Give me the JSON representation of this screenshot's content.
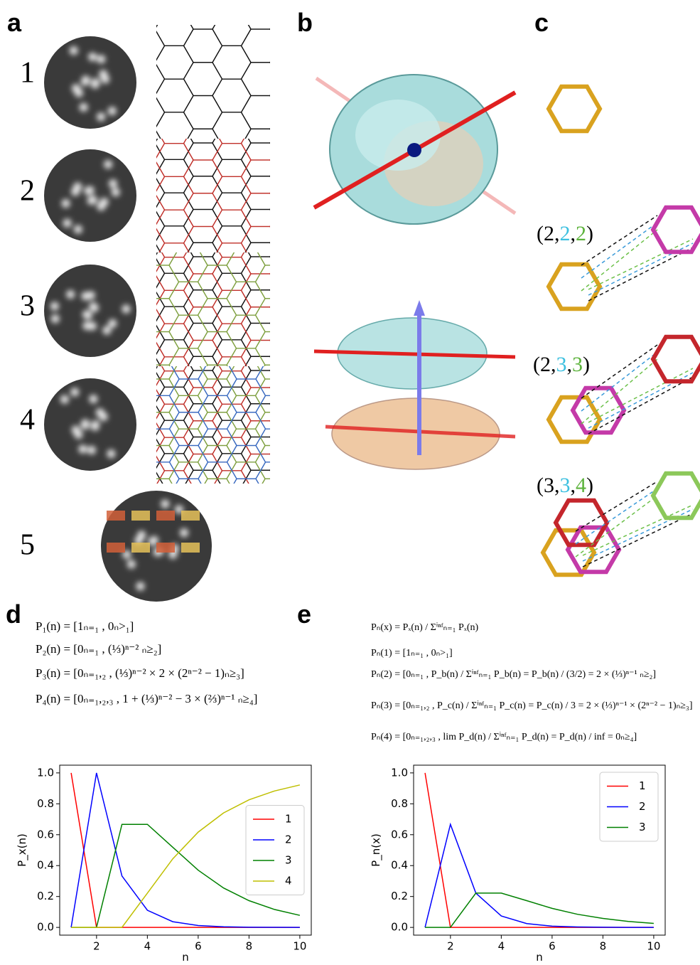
{
  "panels": {
    "a": "a",
    "b": "b",
    "c": "c",
    "d": "d",
    "e": "e"
  },
  "rows": [
    "1",
    "2",
    "3",
    "4",
    "5"
  ],
  "triples": [
    [
      "(2,",
      "2",
      ",",
      "2",
      ")"
    ],
    [
      "(2,",
      "3",
      ",",
      "3",
      ")"
    ],
    [
      "(3,",
      "3",
      ",",
      "4",
      ")"
    ]
  ],
  "equations_d": [
    "P₁(n) = [1ₙ₌₁ , 0ₙ>₁]",
    "P₂(n) = [0ₙ₌₁ , (⅓)ⁿ⁻² ₙ≥₂]",
    "P₃(n) = [0ₙ₌₁,₂ , (⅓)ⁿ⁻² × 2 × (2ⁿ⁻² − 1)ₙ≥₃]",
    "P₄(n) = [0ₙ₌₁,₂,₃ , 1 + (⅓)ⁿ⁻² − 3 × (⅔)ⁿ⁻¹ ₙ≥₄]"
  ],
  "equations_e": [
    "Pₙ(x) = Pₓ(n) / Σⁱⁿᶠₙ₌₁ Pₓ(n)",
    "Pₙ(1) = [1ₙ₌₁ , 0ₙ>₁]",
    "Pₙ(2) = [0ₙ₌₁ , P_b(n) / Σⁱⁿᶠₙ₌₁ P_b(n) = P_b(n) / (3/2) = 2 × (⅓)ⁿ⁻¹ ₙ≥₂]",
    "Pₙ(3) = [0ₙ₌₁,₂ , P_c(n) / Σⁱⁿᶠₙ₌₁ P_c(n) = P_c(n) / 3 = 2 × (⅓)ⁿ⁻¹ × (2ⁿ⁻² − 1)ₙ≥₃]",
    "Pₙ(4) = [0ₙ₌₁,₂,₃ , lim P_d(n) / Σⁱⁿᶠₙ₌₁ P_d(n) = P_d(n) / inf = 0ₙ≥₄]"
  ],
  "chart_data": [
    {
      "type": "line",
      "xlabel": "n",
      "ylabel": "P_x(n)",
      "x": [
        1,
        2,
        3,
        4,
        5,
        6,
        7,
        8,
        9,
        10
      ],
      "xlim": [
        0.55,
        10.45
      ],
      "xticks": [
        2,
        4,
        6,
        8,
        10
      ],
      "ylim": [
        -0.05,
        1.05
      ],
      "yticks": [
        {
          "value": 0,
          "label": "0.0"
        },
        0.2,
        0.4,
        0.6,
        0.8,
        {
          "value": 1,
          "label": "1.0"
        }
      ],
      "legend": "center right",
      "series": [
        {
          "name": "1",
          "color": "#ff0000",
          "values": [
            1,
            0,
            0,
            0,
            0,
            0,
            0,
            0,
            0,
            0
          ]
        },
        {
          "name": "2",
          "color": "#0000ff",
          "values": [
            0,
            1,
            0.333,
            0.111,
            0.037,
            0.012,
            0.004,
            0.001,
            0.0005,
            0.0002
          ]
        },
        {
          "name": "3",
          "color": "#008000",
          "values": [
            0,
            0,
            0.667,
            0.667,
            0.519,
            0.37,
            0.255,
            0.173,
            0.116,
            0.078
          ]
        },
        {
          "name": "4",
          "color": "#bfbf00",
          "values": [
            0,
            0,
            0,
            0.222,
            0.444,
            0.617,
            0.741,
            0.826,
            0.883,
            0.922
          ]
        }
      ]
    },
    {
      "type": "line",
      "xlabel": "n",
      "ylabel": "P_n(x)",
      "x": [
        1,
        2,
        3,
        4,
        5,
        6,
        7,
        8,
        9,
        10
      ],
      "xlim": [
        0.55,
        10.45
      ],
      "xticks": [
        2,
        4,
        6,
        8,
        10
      ],
      "ylim": [
        -0.05,
        1.05
      ],
      "yticks": [
        {
          "value": 0,
          "label": "0.0"
        },
        0.2,
        0.4,
        0.6,
        0.8,
        {
          "value": 1,
          "label": "1.0"
        }
      ],
      "legend": "upper right",
      "series": [
        {
          "name": "1",
          "color": "#ff0000",
          "values": [
            1,
            0,
            0,
            0,
            0,
            0,
            0,
            0,
            0,
            0
          ]
        },
        {
          "name": "2",
          "color": "#0000ff",
          "values": [
            0,
            0.667,
            0.222,
            0.074,
            0.025,
            0.008,
            0.003,
            0.001,
            0.0003,
            0.0001
          ]
        },
        {
          "name": "3",
          "color": "#008000",
          "values": [
            0,
            0,
            0.222,
            0.222,
            0.173,
            0.123,
            0.085,
            0.058,
            0.039,
            0.026
          ]
        }
      ]
    }
  ]
}
